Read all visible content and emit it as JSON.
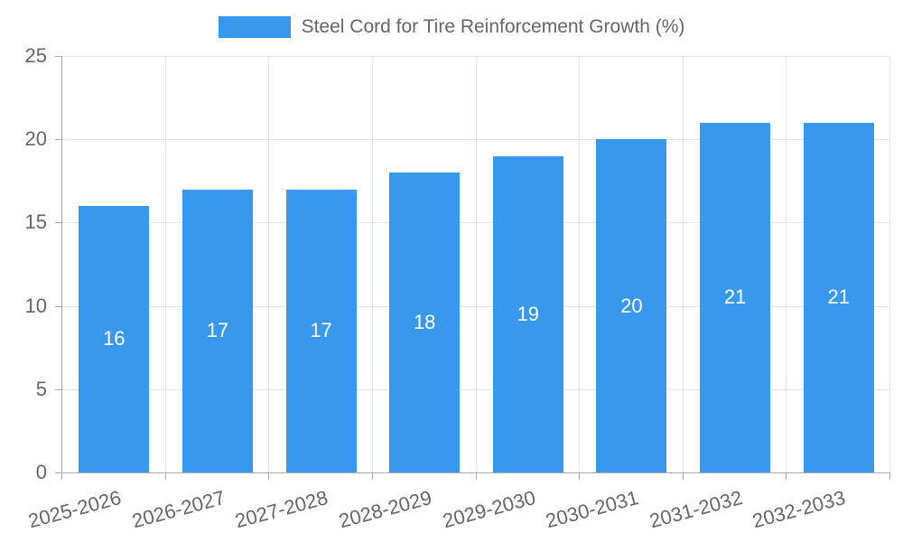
{
  "chart_data": {
    "type": "bar",
    "title": "Steel Cord for Tire Reinforcement Growth (%)",
    "xlabel": "",
    "ylabel": "",
    "categories": [
      "2025-2026",
      "2026-2027",
      "2027-2028",
      "2028-2029",
      "2029-2030",
      "2030-2031",
      "2031-2032",
      "2032-2033"
    ],
    "values": [
      16,
      17,
      17,
      18,
      19,
      20,
      21,
      21
    ],
    "value_labels": [
      "16",
      "17",
      "17",
      "18",
      "19",
      "20",
      "21",
      "21"
    ],
    "ylim": [
      0,
      25
    ],
    "yticks": [
      0,
      5,
      10,
      15,
      20,
      25
    ],
    "grid": "on",
    "legend_position": "top-center",
    "colors": {
      "bar": "#3899EC",
      "value_label": "#ffffff",
      "grid_line": "#e3e3e3",
      "axis_line": "#a9a9a9",
      "tick_label": "#666666",
      "title_text": "#666666",
      "background": "#ffffff"
    }
  }
}
